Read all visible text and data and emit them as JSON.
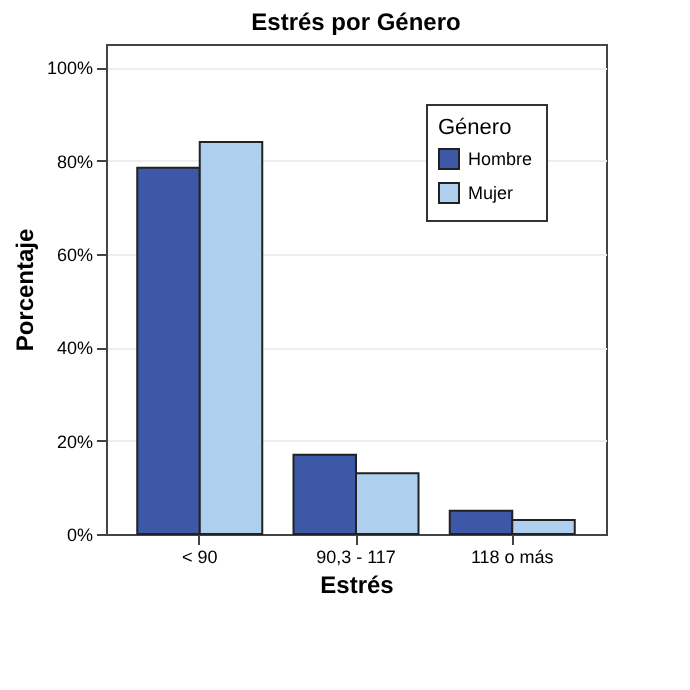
{
  "chart_data": {
    "type": "bar",
    "title": "Estrés por Género",
    "xlabel": "Estrés",
    "ylabel": "Porcentaje",
    "legend_title": "Género",
    "categories": [
      "< 90",
      "90,3 - 117",
      "118 o más"
    ],
    "series": [
      {
        "name": "Hombre",
        "color": "#3e58a8",
        "values": [
          78.5,
          17,
          5
        ]
      },
      {
        "name": "Mujer",
        "color": "#aed0ee",
        "values": [
          84,
          13,
          3
        ]
      }
    ],
    "ylim": [
      0,
      105
    ],
    "yticks": [
      {
        "value": 0,
        "label": "0%"
      },
      {
        "value": 20,
        "label": "20%"
      },
      {
        "value": 40,
        "label": "40%"
      },
      {
        "value": 60,
        "label": "60%"
      },
      {
        "value": 80,
        "label": "80%"
      },
      {
        "value": 100,
        "label": "100%"
      }
    ],
    "grid": "y",
    "legend": "top right"
  }
}
